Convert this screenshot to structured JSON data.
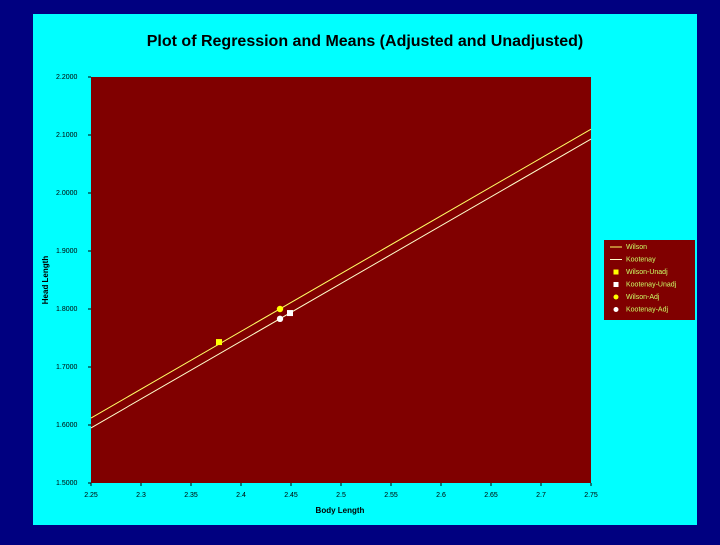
{
  "chart_data": {
    "type": "scatter",
    "title": "Plot of Regression and Means (Adjusted and Unadjusted)",
    "x_label": "Body Length",
    "y_label": "Head Length",
    "xlim": [
      2.25,
      2.75
    ],
    "xticks": [
      2.25,
      2.3,
      2.35,
      2.4,
      2.45,
      2.5,
      2.55,
      2.6,
      2.65,
      2.7,
      2.75
    ],
    "ylim": [
      1.5,
      2.2
    ],
    "yticks": [
      {
        "value": 1.5,
        "label": "1.5000"
      },
      {
        "value": 1.6,
        "label": "1.6000"
      },
      {
        "value": 1.7,
        "label": "1.7000"
      },
      {
        "value": 1.8,
        "label": "1.8000"
      },
      {
        "value": 1.9,
        "label": "1.9000"
      },
      {
        "value": 2.0,
        "label": "2.0000"
      },
      {
        "value": 2.1,
        "label": "2.1000"
      },
      {
        "value": 2.2,
        "label": "2.2000"
      }
    ],
    "legend": "right",
    "series": [
      {
        "name": "Wilson",
        "color": "#ffff66",
        "marker": "line",
        "x": [
          2.25,
          2.75
        ],
        "values": [
          1.612,
          2.11
        ]
      },
      {
        "name": "Kootenay",
        "color": "#ffffcc",
        "marker": "line",
        "x": [
          2.25,
          2.75
        ],
        "values": [
          1.595,
          2.093
        ]
      },
      {
        "name": "Wilson-Unadj",
        "color": "#ffff00",
        "marker": "square",
        "x": [
          2.378
        ],
        "values": [
          1.743
        ]
      },
      {
        "name": "Kootenay-Unadj",
        "color": "#ffffff",
        "marker": "square",
        "x": [
          2.449
        ],
        "values": [
          1.793
        ]
      },
      {
        "name": "Wilson-Adj",
        "color": "#ffff00",
        "marker": "circle",
        "x": [
          2.439
        ],
        "values": [
          1.8
        ]
      },
      {
        "name": "Kootenay-Adj",
        "color": "#ffffff",
        "marker": "circle",
        "x": [
          2.439
        ],
        "values": [
          1.783
        ]
      }
    ]
  }
}
